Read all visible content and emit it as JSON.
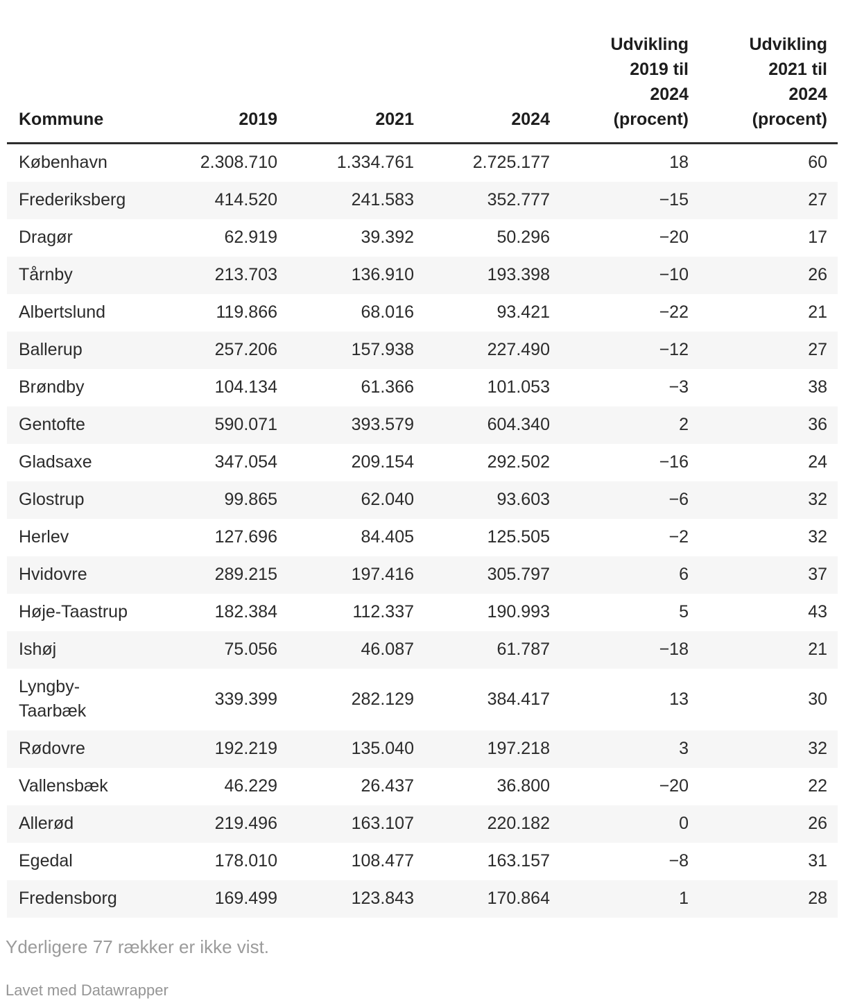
{
  "chart_data": {
    "type": "table",
    "columns": [
      "Kommune",
      "2019",
      "2021",
      "2024",
      "Udvikling 2019 til 2024 (procent)",
      "Udvikling 2021 til 2024 (procent)"
    ],
    "header_display": [
      "Kommune",
      "2019",
      "2021",
      "2024",
      "Udvikling\n2019 til\n2024\n(procent)",
      "Udvikling\n2021 til\n2024\n(procent)"
    ],
    "rows": [
      [
        "København",
        "2.308.710",
        "1.334.761",
        "2.725.177",
        "18",
        "60"
      ],
      [
        "Frederiksberg",
        "414.520",
        "241.583",
        "352.777",
        "−15",
        "27"
      ],
      [
        "Dragør",
        "62.919",
        "39.392",
        "50.296",
        "−20",
        "17"
      ],
      [
        "Tårnby",
        "213.703",
        "136.910",
        "193.398",
        "−10",
        "26"
      ],
      [
        "Albertslund",
        "119.866",
        "68.016",
        "93.421",
        "−22",
        "21"
      ],
      [
        "Ballerup",
        "257.206",
        "157.938",
        "227.490",
        "−12",
        "27"
      ],
      [
        "Brøndby",
        "104.134",
        "61.366",
        "101.053",
        "−3",
        "38"
      ],
      [
        "Gentofte",
        "590.071",
        "393.579",
        "604.340",
        "2",
        "36"
      ],
      [
        "Gladsaxe",
        "347.054",
        "209.154",
        "292.502",
        "−16",
        "24"
      ],
      [
        "Glostrup",
        "99.865",
        "62.040",
        "93.603",
        "−6",
        "32"
      ],
      [
        "Herlev",
        "127.696",
        "84.405",
        "125.505",
        "−2",
        "32"
      ],
      [
        "Hvidovre",
        "289.215",
        "197.416",
        "305.797",
        "6",
        "37"
      ],
      [
        "Høje-Taastrup",
        "182.384",
        "112.337",
        "190.993",
        "5",
        "43"
      ],
      [
        "Ishøj",
        "75.056",
        "46.087",
        "61.787",
        "−18",
        "21"
      ],
      [
        "Lyngby-Taarbæk",
        "339.399",
        "282.129",
        "384.417",
        "13",
        "30"
      ],
      [
        "Rødovre",
        "192.219",
        "135.040",
        "197.218",
        "3",
        "32"
      ],
      [
        "Vallensbæk",
        "46.229",
        "26.437",
        "36.800",
        "−20",
        "22"
      ],
      [
        "Allerød",
        "219.496",
        "163.107",
        "220.182",
        "0",
        "26"
      ],
      [
        "Egedal",
        "178.010",
        "108.477",
        "163.157",
        "−8",
        "31"
      ],
      [
        "Fredensborg",
        "169.499",
        "123.843",
        "170.864",
        "1",
        "28"
      ]
    ]
  },
  "footer": {
    "rows_note": "Yderligere 77 rækker er ikke vist.",
    "credit": "Lavet med Datawrapper"
  },
  "colors": {
    "row_stripe": "#f6f6f6",
    "header_rule": "#2e2e2e",
    "body_text": "#2b2b2b",
    "header_text": "#1d1d1d",
    "muted_text": "#9b9b9b"
  }
}
